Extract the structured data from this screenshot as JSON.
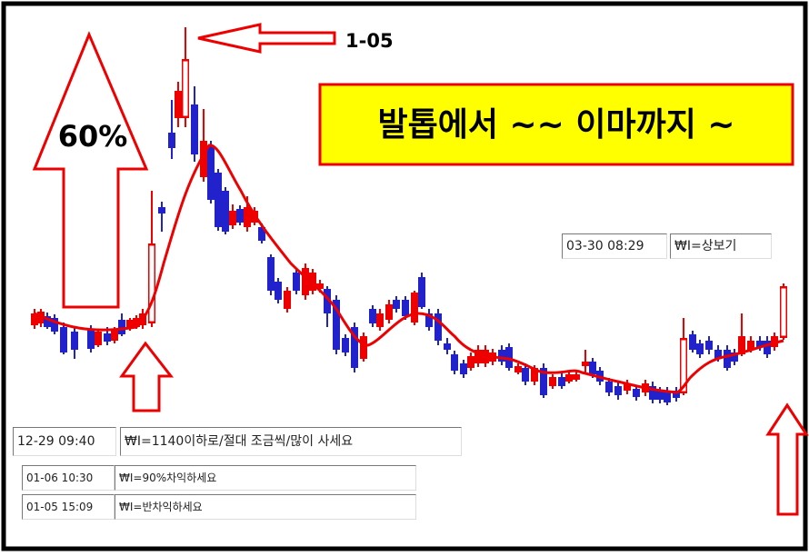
{
  "annotations": {
    "peak_date": "1-05",
    "rise": "60%",
    "headline": "발톱에서 ~~ 이마까지 ~"
  },
  "notes": [
    {
      "time": "03-30 08:29",
      "text": "₩I=상보기"
    },
    {
      "time": "12-29 09:40",
      "text": "₩I=1140이하로/절대 조금씩/많이 사세요"
    },
    {
      "time": "01-06 10:30",
      "text": "₩I=90%차익하세요"
    },
    {
      "time": "01-05 15:09",
      "text": "₩I=반차익하세요"
    }
  ]
}
